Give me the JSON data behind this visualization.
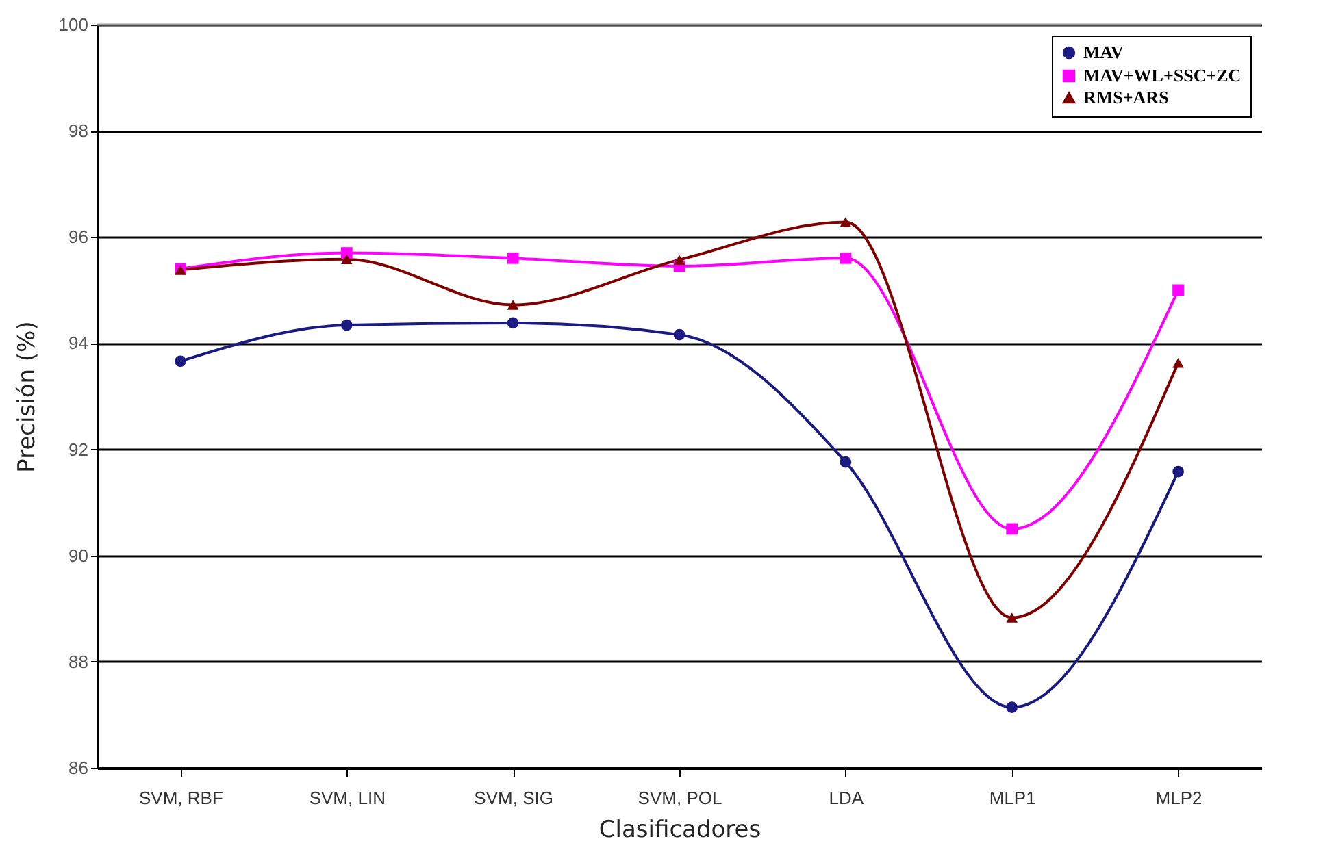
{
  "chart_data": {
    "type": "line",
    "xlabel": "Clasificadores",
    "ylabel": "Precisión (%)",
    "categories": [
      "SVM, RBF",
      "SVM, LIN",
      "SVM, SIG",
      "SVM, POL",
      "LDA",
      "MLP1",
      "MLP2"
    ],
    "series": [
      {
        "name": "MAV",
        "color": "#1a1a80",
        "marker": "circle",
        "values": [
          93.66,
          94.34,
          94.38,
          94.16,
          91.76,
          87.14,
          91.58
        ]
      },
      {
        "name": "MAV+WL+SSC+ZC",
        "color": "#ff00ff",
        "marker": "square",
        "values": [
          95.4,
          95.7,
          95.6,
          95.45,
          95.6,
          90.5,
          95.0
        ]
      },
      {
        "name": "RMS+ARS",
        "color": "#800000",
        "marker": "triangle",
        "values": [
          95.38,
          95.58,
          94.72,
          95.57,
          96.28,
          88.83,
          93.63
        ]
      }
    ],
    "ylim": [
      86,
      100
    ],
    "yticks": [
      86,
      88,
      90,
      92,
      94,
      96,
      98,
      100
    ],
    "grid": "y",
    "legend": "top right",
    "line_style": "solid"
  }
}
